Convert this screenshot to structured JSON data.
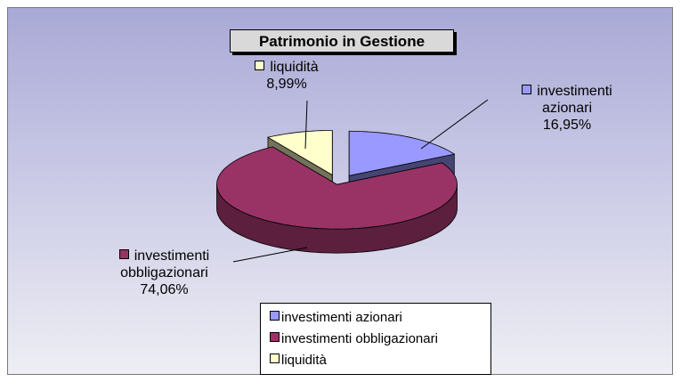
{
  "chart_data": {
    "type": "pie3d",
    "title": "Patrimonio in Gestione",
    "categories": [
      "investimenti azionari",
      "investimenti obbligazionari",
      "liquidità"
    ],
    "values": [
      16.95,
      74.06,
      8.99
    ],
    "value_labels": [
      "16,95%",
      "74,06%",
      "8,99%"
    ],
    "colors": [
      "#9999ff",
      "#993366",
      "#ffffcc"
    ],
    "legend": "bottom"
  }
}
